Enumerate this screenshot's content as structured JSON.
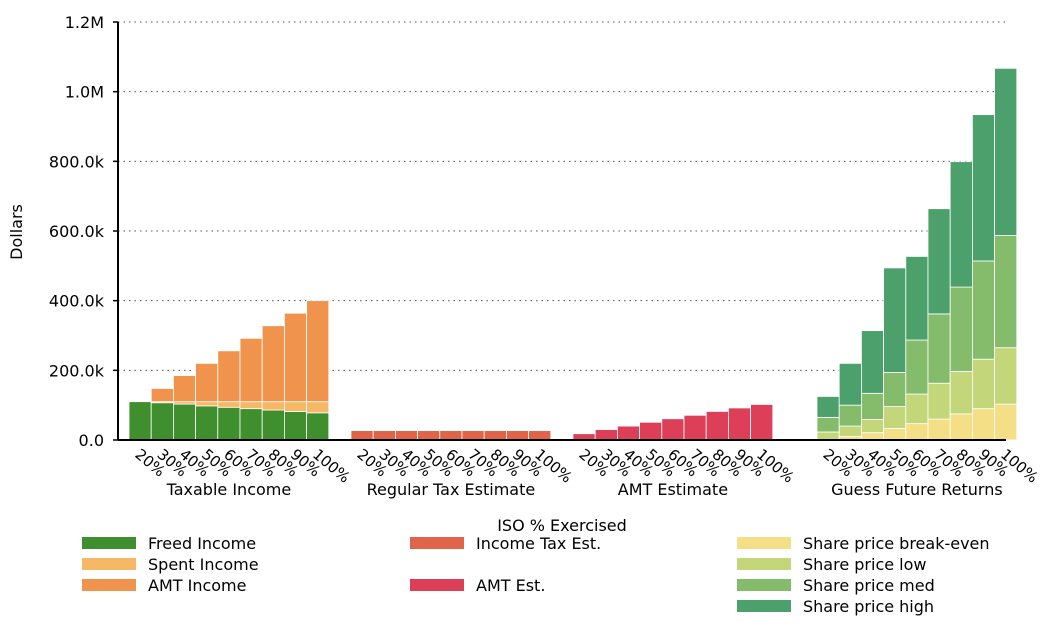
{
  "chart_data": {
    "type": "bar",
    "stacked": true,
    "xlabel": "ISO % Exercised",
    "ylabel": "Dollars",
    "ylim": [
      0,
      1200000
    ],
    "yticks": [
      {
        "value": 0,
        "label": "0.0"
      },
      {
        "value": 200000,
        "label": "200.0k"
      },
      {
        "value": 400000,
        "label": "400.0k"
      },
      {
        "value": 600000,
        "label": "600.0k"
      },
      {
        "value": 800000,
        "label": "800.0k"
      },
      {
        "value": 1000000,
        "label": "1.0M"
      },
      {
        "value": 1200000,
        "label": "1.2M"
      }
    ],
    "grid": "horizontal dotted",
    "categories": [
      "20%",
      "30%",
      "40%",
      "50%",
      "60%",
      "70%",
      "80%",
      "90%",
      "100%"
    ],
    "groups": [
      {
        "label": "Taxable Income",
        "series": [
          {
            "name": "Freed Income",
            "color": "#3f8f2e",
            "values": [
              110000,
              107000,
              103000,
              98000,
              94000,
              90000,
              86000,
              82000,
              78000
            ]
          },
          {
            "name": "Spent Income",
            "color": "#f7b865",
            "values": [
              0,
              3000,
              7000,
              12000,
              16000,
              20000,
              24000,
              28000,
              32000
            ]
          },
          {
            "name": "AMT Income",
            "color": "#f0944d",
            "values": [
              0,
              38000,
              75000,
              110000,
              146000,
              182000,
              218000,
              254000,
              290000
            ]
          }
        ]
      },
      {
        "label": "Regular Tax Estimate",
        "series": [
          {
            "name": "Income Tax Est.",
            "color": "#e0644a",
            "values": [
              27000,
              27000,
              27000,
              27000,
              27000,
              27000,
              27000,
              27000,
              27000
            ]
          }
        ]
      },
      {
        "label": "AMT Estimate",
        "series": [
          {
            "name": "AMT Est.",
            "color": "#dc3f57",
            "values": [
              18000,
              30000,
              40000,
              51000,
              61000,
              71000,
              82000,
              92000,
              102000
            ]
          }
        ]
      },
      {
        "label": "Guess Future Returns",
        "series": [
          {
            "name": "Share price break-even",
            "color": "#f5df86",
            "values": [
              0,
              10000,
              21000,
              33000,
              47000,
              60000,
              75000,
              90000,
              103000
            ]
          },
          {
            "name": "Share price low",
            "color": "#c3d77a",
            "values": [
              23000,
              30000,
              38000,
              63000,
              85000,
              103000,
              122000,
              142000,
              162000
            ]
          },
          {
            "name": "Share price med",
            "color": "#84bc6c",
            "values": [
              42000,
              60000,
              75000,
              98000,
              155000,
              199000,
              242000,
              282000,
              322000
            ]
          },
          {
            "name": "Share price high",
            "color": "#4ca06b",
            "values": [
              60000,
              120000,
              180000,
              300000,
              240000,
              302000,
              360000,
              420000,
              480000
            ]
          }
        ]
      }
    ],
    "legend": [
      [
        {
          "name": "Freed Income",
          "color": "#3f8f2e"
        },
        {
          "name": "Spent Income",
          "color": "#f7b865"
        },
        {
          "name": "AMT Income",
          "color": "#f0944d"
        }
      ],
      [
        {
          "name": "Income Tax Est.",
          "color": "#e0644a"
        },
        null,
        {
          "name": "AMT Est.",
          "color": "#dc3f57"
        }
      ],
      [
        {
          "name": "Share price break-even",
          "color": "#f5df86"
        },
        {
          "name": "Share price low",
          "color": "#c3d77a"
        },
        {
          "name": "Share price med",
          "color": "#84bc6c"
        },
        {
          "name": "Share price high",
          "color": "#4ca06b"
        }
      ]
    ],
    "legend_position": "bottom"
  }
}
